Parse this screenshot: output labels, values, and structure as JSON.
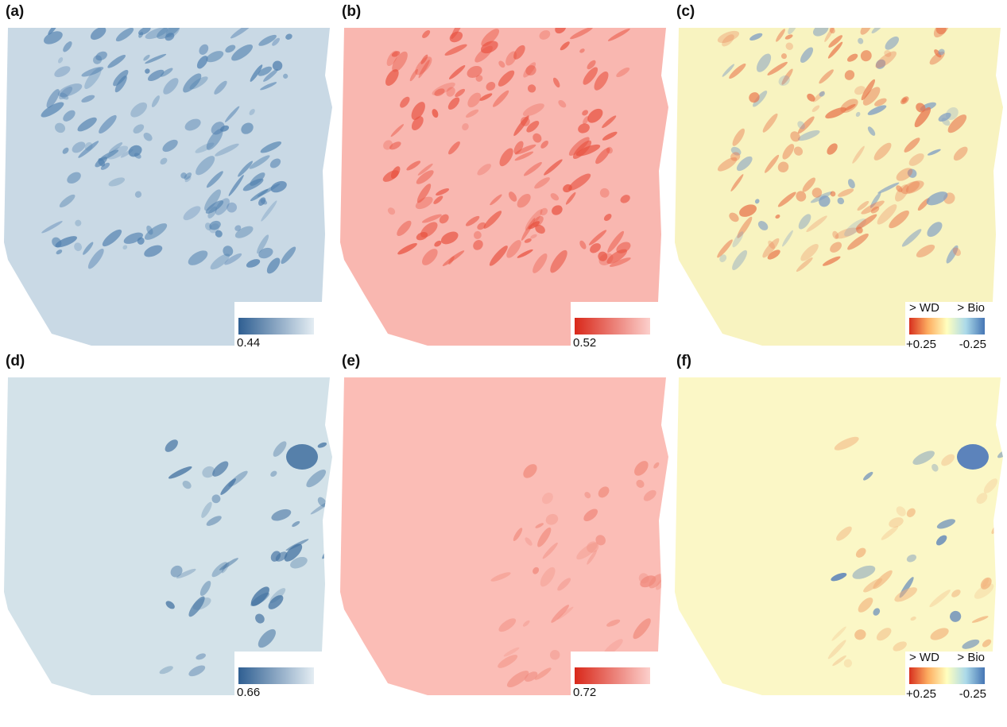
{
  "panels": [
    {
      "label": "(a)",
      "legend": {
        "low_label": "0.44"
      },
      "colormap": [
        "#2f5f92",
        "#e4edf3"
      ],
      "base": "#c9d9e5",
      "patch": "#4f7fae"
    },
    {
      "label": "(b)",
      "legend": {
        "low_label": "0.52"
      },
      "colormap": [
        "#d9281a",
        "#fcd0cc"
      ],
      "base": "#f9b7b0",
      "patch": "#e8513f"
    },
    {
      "label": "(c)",
      "legend": {
        "left_title": "> WD",
        "right_title": "> Bio",
        "left_label": "+0.25",
        "right_label": "-0.25"
      },
      "colormap": [
        "#d7301f",
        "#fdae61",
        "#ffffbf",
        "#abd9e9",
        "#4575b4"
      ],
      "base": "#f8f3c0",
      "patch": "#e8734a",
      "patch2": "#7b9bc4"
    },
    {
      "label": "(d)",
      "legend": {
        "low_label": "0.66"
      },
      "colormap": [
        "#2f5f92",
        "#e4edf3"
      ],
      "base": "#d3e2e9",
      "patch": "#3f6f9f"
    },
    {
      "label": "(e)",
      "legend": {
        "low_label": "0.72"
      },
      "colormap": [
        "#d9281a",
        "#fcd0cc"
      ],
      "base": "#fbbdb6",
      "patch": "#f08a7c"
    },
    {
      "label": "(f)",
      "legend": {
        "left_title": "> WD",
        "right_title": "> Bio",
        "left_label": "+0.25",
        "right_label": "-0.25"
      },
      "colormap": [
        "#d7301f",
        "#fdae61",
        "#ffffbf",
        "#abd9e9",
        "#4575b4"
      ],
      "base": "#fbf7c6",
      "patch": "#f1b27c",
      "patch2": "#3f6fb8"
    }
  ]
}
